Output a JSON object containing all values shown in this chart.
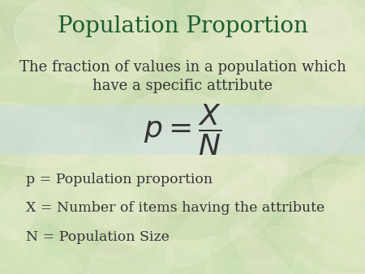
{
  "title": "Population Proportion",
  "subtitle_line1": "The fraction of values in a population which",
  "subtitle_line2": "have a specific attribute",
  "def1": "p = Population proportion",
  "def2": "X = Number of items having the attribute",
  "def3": "N = Population Size",
  "title_color": "#1e5c30",
  "text_color": "#333333",
  "bg_base": "#c8ddb0",
  "band_color": "#c8dce8",
  "title_fontsize": 20,
  "subtitle_fontsize": 13,
  "formula_fontsize": 26,
  "def_fontsize": 12.5
}
